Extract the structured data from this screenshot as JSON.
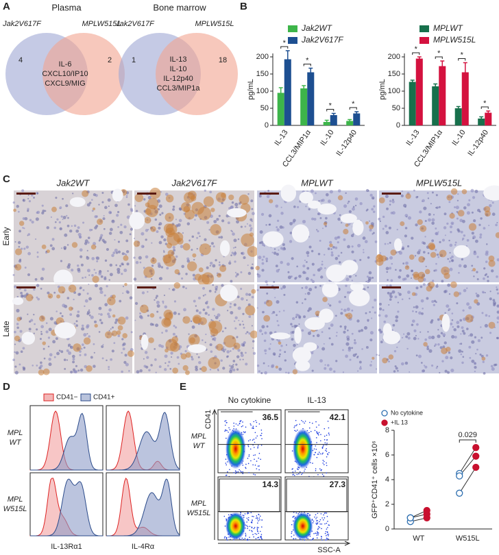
{
  "panel_labels": [
    "A",
    "B",
    "C",
    "D",
    "E"
  ],
  "venn": [
    {
      "title": "Plasma",
      "sets": [
        "Jak2V617F",
        "MPLW515L"
      ],
      "only": [
        4,
        2
      ],
      "shared": [
        "IL-6",
        "CXCL10/IP10",
        "CXCL9/MIG"
      ]
    },
    {
      "title": "Bone marrow",
      "sets": [
        "Jak2V617F",
        "MPLW515L"
      ],
      "only": [
        1,
        18
      ],
      "shared": [
        "IL-13",
        "IL-10",
        "IL-12p40",
        "CCL3/MIP1a"
      ]
    }
  ],
  "micrographs": {
    "columns": [
      "Jak2WT",
      "Jak2V617F",
      "MPLWT",
      "MPLW515L"
    ],
    "rows": [
      "Early",
      "Late"
    ]
  },
  "histograms": {
    "legend": [
      "CD41−",
      "CD41+"
    ],
    "rows": [
      [
        "MPL",
        "WT"
      ],
      [
        "MPL",
        "W515L"
      ]
    ],
    "columns": [
      "IL-13Rα1",
      "IL-4Rα"
    ]
  },
  "flow": {
    "columns": [
      "No cytokine",
      "IL-13"
    ],
    "rows": [
      [
        "MPL",
        "WT"
      ],
      [
        "MPL",
        "W515L"
      ]
    ],
    "y_label": "CD41",
    "x_label": "SSC-A",
    "gates": [
      [
        36.5,
        42.1
      ],
      [
        14.3,
        27.3
      ]
    ]
  },
  "chart_data": [
    {
      "type": "bar",
      "categories": [
        "IL-13",
        "CCL3/MIP1α",
        "IL-10",
        "IL-12p40"
      ],
      "series": [
        {
          "name": "Jak2WT",
          "color": "#3db54a",
          "values": [
            95,
            108,
            10,
            13
          ],
          "errors": [
            15,
            8,
            5,
            4
          ]
        },
        {
          "name": "Jak2V617F",
          "color": "#1d4f91",
          "values": [
            193,
            155,
            30,
            35
          ],
          "errors": [
            25,
            12,
            5,
            5
          ]
        }
      ],
      "significance": [
        "*",
        "*",
        "*",
        "*"
      ],
      "y_label": "pg/mL",
      "ylim": [
        0,
        210
      ],
      "yticks": [
        0,
        50,
        100,
        150,
        200
      ]
    },
    {
      "type": "bar",
      "categories": [
        "IL-13",
        "CCL3/MIP1α",
        "IL-10",
        "IL-12p40"
      ],
      "series": [
        {
          "name": "MPLWT",
          "color": "#17704c",
          "values": [
            127,
            114,
            50,
            20
          ],
          "errors": [
            5,
            7,
            5,
            5
          ]
        },
        {
          "name": "MPLW515L",
          "color": "#d4123f",
          "values": [
            195,
            173,
            155,
            37
          ],
          "errors": [
            5,
            15,
            28,
            5
          ]
        }
      ],
      "significance": [
        "*",
        "*",
        "*",
        "*"
      ],
      "y_label": "pg/mL",
      "ylim": [
        0,
        210
      ],
      "yticks": [
        0,
        50,
        100,
        150,
        200
      ]
    },
    {
      "type": "paired-dot",
      "categories": [
        "WT",
        "W515L"
      ],
      "series": [
        {
          "name": "No cytokine",
          "color": "#2e6fb0",
          "values": [
            [
              0.6,
              0.9,
              0.9
            ],
            [
              4.5,
              4.3,
              2.9
            ]
          ]
        },
        {
          "name": "+IL 13",
          "color": "#c8102e",
          "values": [
            [
              0.9,
              1.2,
              1.5
            ],
            [
              6.6,
              5.9,
              5.0
            ]
          ]
        }
      ],
      "p_value": "0.029",
      "y_label": "GFP⁺CD41⁺ cells ×10⁶",
      "ylim": [
        0,
        8
      ],
      "yticks": [
        0,
        2,
        4,
        6,
        8
      ]
    }
  ]
}
